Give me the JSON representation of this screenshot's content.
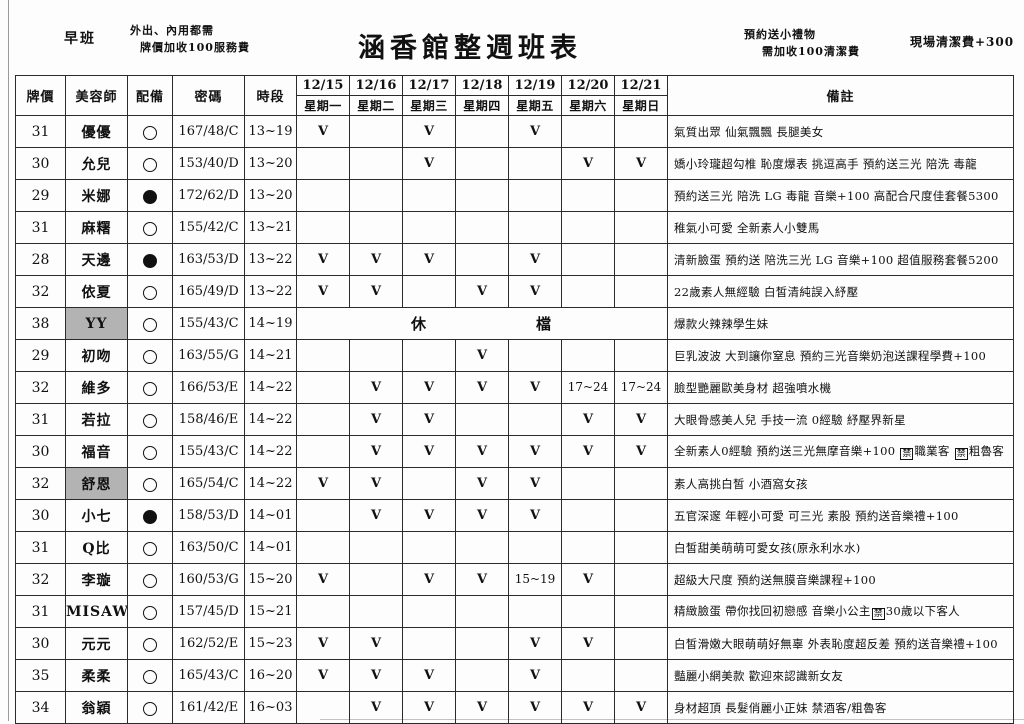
{
  "page": {
    "shift_label": "早班",
    "note_left_line1": "外出、內用都需",
    "note_left_line2": "牌價加收100服務費",
    "title": "涵香館整週班表",
    "note_right_line1": "預約送小禮物",
    "note_right_line2": "需加收100清潔費",
    "note_far_right": "現場清潔費+300"
  },
  "table": {
    "headers": {
      "price": "牌價",
      "beautician": "美容師",
      "equipment": "配備",
      "code": "密碼",
      "time": "時段",
      "remarks": "備註"
    },
    "days": [
      {
        "date": "12/15",
        "weekday": "星期一"
      },
      {
        "date": "12/16",
        "weekday": "星期二"
      },
      {
        "date": "12/17",
        "weekday": "星期三"
      },
      {
        "date": "12/18",
        "weekday": "星期四"
      },
      {
        "date": "12/19",
        "weekday": "星期五"
      },
      {
        "date": "12/20",
        "weekday": "星期六"
      },
      {
        "date": "12/21",
        "weekday": "星期日"
      }
    ],
    "rest_label": [
      "休",
      "檔"
    ],
    "rows": [
      {
        "price": "31",
        "name": "優優",
        "name_gray": false,
        "equipped": false,
        "code": "167/48/C",
        "time": "13~19",
        "rest": false,
        "days": [
          "V",
          "",
          "V",
          "",
          "V",
          "",
          ""
        ],
        "remark": "氣質出眾 仙氣飄飄 長腿美女"
      },
      {
        "price": "30",
        "name": "允兒",
        "name_gray": false,
        "equipped": false,
        "code": "153/40/D",
        "time": "13~20",
        "rest": false,
        "days": [
          "",
          "",
          "V",
          "",
          "",
          "V",
          "V"
        ],
        "remark": "嬌小玲瓏超勾椎 恥度爆表 挑逗高手 預約送三光 陪洗 毒龍"
      },
      {
        "price": "29",
        "name": "米娜",
        "name_gray": false,
        "equipped": true,
        "code": "172/62/D",
        "time": "13~20",
        "rest": false,
        "days": [
          "",
          "",
          "",
          "",
          "",
          "",
          ""
        ],
        "remark": "預約送三光 陪洗 LG 毒龍 音樂+100 高配合尺度佳套餐5300"
      },
      {
        "price": "31",
        "name": "麻糬",
        "name_gray": false,
        "equipped": false,
        "code": "155/42/C",
        "time": "13~21",
        "rest": false,
        "days": [
          "",
          "",
          "",
          "",
          "",
          "",
          ""
        ],
        "remark": "稚氣小可愛 全新素人小雙馬"
      },
      {
        "price": "28",
        "name": "天邊",
        "name_gray": false,
        "equipped": true,
        "code": "163/53/D",
        "time": "13~22",
        "rest": false,
        "days": [
          "V",
          "V",
          "V",
          "",
          "V",
          "",
          ""
        ],
        "remark": "清新臉蛋 預約送 陪洗三光 LG 音樂+100 超值服務套餐5200"
      },
      {
        "price": "32",
        "name": "依夏",
        "name_gray": false,
        "equipped": false,
        "code": "165/49/D",
        "time": "13~22",
        "rest": false,
        "days": [
          "V",
          "V",
          "",
          "V",
          "V",
          "",
          ""
        ],
        "remark": "22歲素人無經驗 白皙清純誤入紓壓"
      },
      {
        "price": "38",
        "name": "YY",
        "name_gray": true,
        "equipped": false,
        "code": "155/43/C",
        "time": "14~19",
        "rest": true,
        "days": [
          "",
          "",
          "",
          "",
          "",
          "",
          ""
        ],
        "remark": "爆款火辣辣學生妹"
      },
      {
        "price": "29",
        "name": "初吻",
        "name_gray": false,
        "equipped": false,
        "code": "163/55/G",
        "time": "14~21",
        "rest": false,
        "days": [
          "",
          "",
          "",
          "V",
          "",
          "",
          ""
        ],
        "remark": "巨乳波波 大到讓你窒息 預約三光音樂奶泡送課程學費+100"
      },
      {
        "price": "32",
        "name": "維多",
        "name_gray": false,
        "equipped": false,
        "code": "166/53/E",
        "time": "14~22",
        "rest": false,
        "days": [
          "",
          "V",
          "V",
          "V",
          "V",
          "17~24",
          "17~24"
        ],
        "remark": "臉型艷麗歐美身材 超強噴水機"
      },
      {
        "price": "31",
        "name": "若拉",
        "name_gray": false,
        "equipped": false,
        "code": "158/46/E",
        "time": "14~22",
        "rest": false,
        "days": [
          "",
          "V",
          "V",
          "",
          "",
          "V",
          "V"
        ],
        "remark": "大眼骨感美人兒 手技一流 0經驗 紓壓界新星"
      },
      {
        "price": "30",
        "name": "福音",
        "name_gray": false,
        "equipped": false,
        "code": "155/43/C",
        "time": "14~22",
        "rest": false,
        "days": [
          "",
          "V",
          "V",
          "V",
          "V",
          "V",
          "V"
        ],
        "remark": "全新素人0經驗 預約送三光無摩音樂+100 🈲職業客 🈲粗魯客"
      },
      {
        "price": "32",
        "name": "舒恩",
        "name_gray": true,
        "equipped": false,
        "code": "165/54/C",
        "time": "14~22",
        "rest": false,
        "days": [
          "V",
          "V",
          "",
          "V",
          "V",
          "",
          ""
        ],
        "remark": "素人高挑白皙 小酒窩女孩"
      },
      {
        "price": "30",
        "name": "小七",
        "name_gray": false,
        "equipped": true,
        "code": "158/53/D",
        "time": "14~01",
        "rest": false,
        "days": [
          "",
          "V",
          "V",
          "V",
          "V",
          "",
          ""
        ],
        "remark": "五官深邃 年輕小可愛 可三光 素股 預約送音樂禮+100"
      },
      {
        "price": "31",
        "name": "Q比",
        "name_gray": false,
        "equipped": false,
        "code": "163/50/C",
        "time": "14~01",
        "rest": false,
        "days": [
          "",
          "",
          "",
          "",
          "",
          "",
          ""
        ],
        "remark": "白皙甜美萌萌可愛女孩(原永利水水)"
      },
      {
        "price": "32",
        "name": "李璇",
        "name_gray": false,
        "equipped": false,
        "code": "160/53/G",
        "time": "15~20",
        "rest": false,
        "days": [
          "V",
          "",
          "V",
          "V",
          "15~19",
          "V",
          ""
        ],
        "remark": "超級大尺度 預約送無膜音樂課程+100"
      },
      {
        "price": "31",
        "name": "MISAWA",
        "name_gray": false,
        "equipped": false,
        "code": "157/45/D",
        "time": "15~21",
        "rest": false,
        "days": [
          "",
          "",
          "",
          "",
          "",
          "",
          ""
        ],
        "remark": "精緻臉蛋 帶你找回初戀感 音樂小公主🈲30歲以下客人"
      },
      {
        "price": "30",
        "name": "元元",
        "name_gray": false,
        "equipped": false,
        "code": "162/52/E",
        "time": "15~23",
        "rest": false,
        "days": [
          "V",
          "V",
          "",
          "",
          "V",
          "V",
          ""
        ],
        "remark": "白皙滑嫩大眼萌萌好無辜 外表恥度超反差 預約送音樂禮+100"
      },
      {
        "price": "35",
        "name": "柔柔",
        "name_gray": false,
        "equipped": false,
        "code": "165/43/C",
        "time": "16~20",
        "rest": false,
        "days": [
          "V",
          "V",
          "V",
          "",
          "V",
          "",
          ""
        ],
        "remark": "豔麗小網美款 歡迎來認識新女友"
      },
      {
        "price": "34",
        "name": "翁穎",
        "name_gray": false,
        "equipped": false,
        "code": "161/42/E",
        "time": "16~03",
        "rest": false,
        "days": [
          "",
          "V",
          "V",
          "V",
          "V",
          "V",
          "V"
        ],
        "remark": "身材超頂 長髮俏麗小正妹 禁酒客/粗魯客"
      }
    ]
  }
}
